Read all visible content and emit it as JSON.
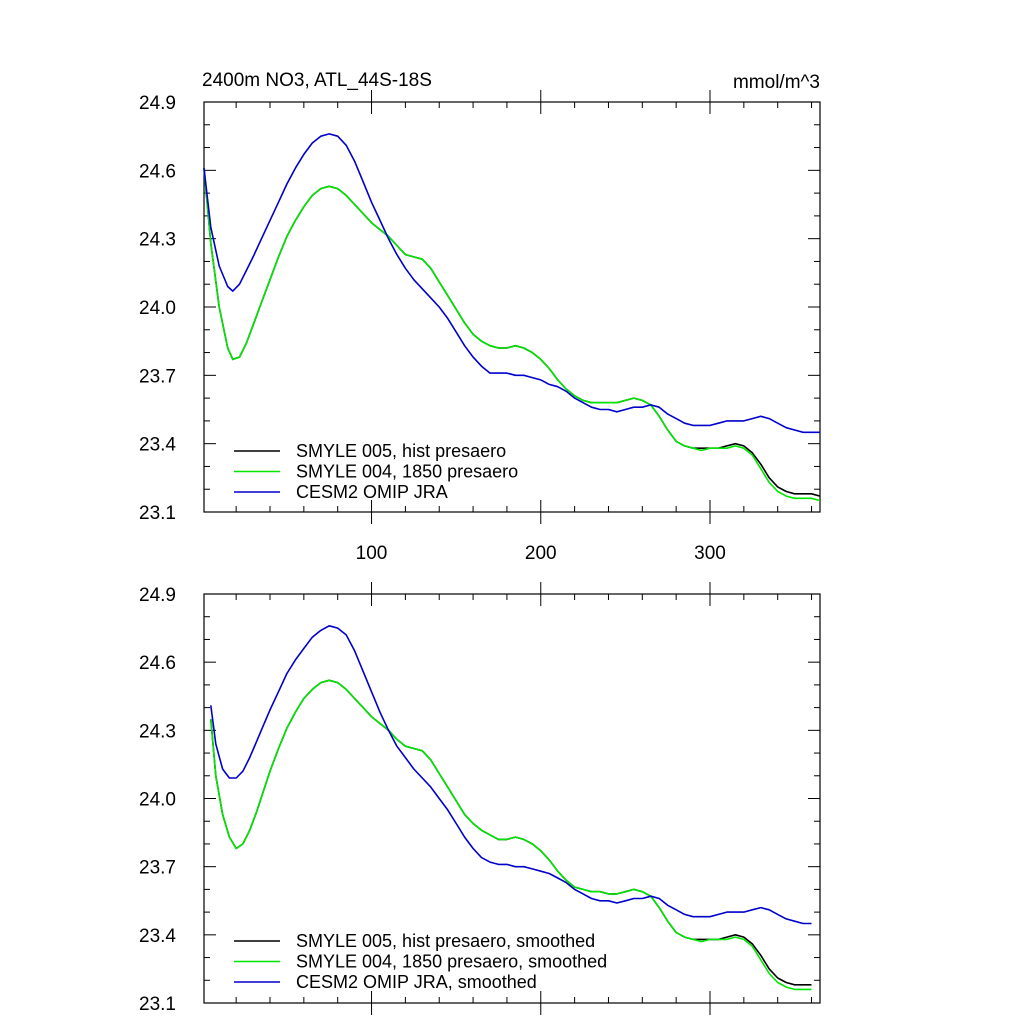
{
  "header": {
    "title": "2400m NO3, ATL_44S-18S",
    "units": "mmol/m^3"
  },
  "chart_data": [
    {
      "type": "line",
      "panel": "top",
      "xlim": [
        1,
        365
      ],
      "ylim": [
        23.1,
        24.9
      ],
      "xticks": [
        100,
        200,
        300
      ],
      "xtick_labels": [
        "100",
        "200",
        "300"
      ],
      "yticks": [
        23.1,
        23.4,
        23.7,
        24.0,
        24.3,
        24.6,
        24.9
      ],
      "ytick_labels": [
        "23.1",
        "23.4",
        "23.7",
        "24.0",
        "24.3",
        "24.6",
        "24.9"
      ],
      "legend_position": "bottom-left",
      "series": [
        {
          "name": "SMYLE 005, hist presaero",
          "color": "#000000",
          "x": [
            1,
            5,
            10,
            15,
            18,
            22,
            26,
            30,
            35,
            40,
            45,
            50,
            55,
            60,
            65,
            70,
            75,
            80,
            85,
            90,
            95,
            100,
            105,
            110,
            115,
            120,
            125,
            130,
            135,
            140,
            145,
            150,
            155,
            160,
            165,
            170,
            175,
            180,
            185,
            190,
            195,
            200,
            205,
            210,
            215,
            220,
            225,
            230,
            235,
            240,
            245,
            250,
            255,
            260,
            265,
            270,
            275,
            280,
            285,
            290,
            295,
            300,
            305,
            310,
            315,
            320,
            325,
            330,
            335,
            340,
            345,
            350,
            355,
            360,
            365
          ],
          "y": [
            24.61,
            24.28,
            24.0,
            23.82,
            23.77,
            23.78,
            23.84,
            23.92,
            24.02,
            24.12,
            24.22,
            24.31,
            24.38,
            24.44,
            24.49,
            24.52,
            24.53,
            24.52,
            24.49,
            24.45,
            24.41,
            24.37,
            24.34,
            24.31,
            24.27,
            24.23,
            24.22,
            24.21,
            24.17,
            24.11,
            24.05,
            23.99,
            23.93,
            23.88,
            23.85,
            23.83,
            23.82,
            23.82,
            23.83,
            23.82,
            23.8,
            23.77,
            23.73,
            23.68,
            23.64,
            23.61,
            23.59,
            23.58,
            23.58,
            23.58,
            23.58,
            23.59,
            23.6,
            23.59,
            23.57,
            23.52,
            23.46,
            23.41,
            23.39,
            23.38,
            23.38,
            23.38,
            23.38,
            23.39,
            23.4,
            23.39,
            23.36,
            23.31,
            23.25,
            23.21,
            23.19,
            23.18,
            23.18,
            23.18,
            23.17
          ]
        },
        {
          "name": "SMYLE 004, 1850 presaero",
          "color": "#00e600",
          "x": [
            1,
            5,
            10,
            15,
            18,
            22,
            26,
            30,
            35,
            40,
            45,
            50,
            55,
            60,
            65,
            70,
            75,
            80,
            85,
            90,
            95,
            100,
            105,
            110,
            115,
            120,
            125,
            130,
            135,
            140,
            145,
            150,
            155,
            160,
            165,
            170,
            175,
            180,
            185,
            190,
            195,
            200,
            205,
            210,
            215,
            220,
            225,
            230,
            235,
            240,
            245,
            250,
            255,
            260,
            265,
            270,
            275,
            280,
            285,
            290,
            295,
            300,
            305,
            310,
            315,
            320,
            325,
            330,
            335,
            340,
            345,
            350,
            355,
            360,
            365
          ],
          "y": [
            24.61,
            24.28,
            24.0,
            23.82,
            23.77,
            23.78,
            23.84,
            23.92,
            24.02,
            24.12,
            24.22,
            24.31,
            24.38,
            24.44,
            24.49,
            24.52,
            24.53,
            24.52,
            24.49,
            24.45,
            24.41,
            24.37,
            24.34,
            24.31,
            24.27,
            24.23,
            24.22,
            24.21,
            24.17,
            24.11,
            24.05,
            23.99,
            23.93,
            23.88,
            23.85,
            23.83,
            23.82,
            23.82,
            23.83,
            23.82,
            23.8,
            23.77,
            23.73,
            23.68,
            23.64,
            23.61,
            23.59,
            23.58,
            23.58,
            23.58,
            23.58,
            23.59,
            23.6,
            23.59,
            23.57,
            23.52,
            23.46,
            23.41,
            23.39,
            23.38,
            23.37,
            23.38,
            23.38,
            23.38,
            23.39,
            23.38,
            23.35,
            23.29,
            23.23,
            23.19,
            23.17,
            23.16,
            23.16,
            23.16,
            23.15
          ]
        },
        {
          "name": "CESM2 OMIP JRA",
          "color": "#0000cc",
          "x": [
            1,
            5,
            10,
            15,
            18,
            22,
            26,
            30,
            35,
            40,
            45,
            50,
            55,
            60,
            65,
            70,
            75,
            80,
            85,
            90,
            95,
            100,
            105,
            110,
            115,
            120,
            125,
            130,
            135,
            140,
            145,
            150,
            155,
            160,
            165,
            170,
            175,
            180,
            185,
            190,
            195,
            200,
            205,
            210,
            215,
            220,
            225,
            230,
            235,
            240,
            245,
            250,
            255,
            260,
            265,
            270,
            275,
            280,
            285,
            290,
            295,
            300,
            305,
            310,
            315,
            320,
            325,
            330,
            335,
            340,
            345,
            350,
            355,
            360,
            365
          ],
          "y": [
            24.61,
            24.35,
            24.18,
            24.09,
            24.07,
            24.1,
            24.16,
            24.22,
            24.3,
            24.38,
            24.46,
            24.54,
            24.61,
            24.67,
            24.72,
            24.75,
            24.76,
            24.75,
            24.71,
            24.64,
            24.55,
            24.46,
            24.38,
            24.3,
            24.23,
            24.17,
            24.12,
            24.08,
            24.04,
            24.0,
            23.95,
            23.89,
            23.83,
            23.78,
            23.74,
            23.71,
            23.71,
            23.71,
            23.7,
            23.7,
            23.69,
            23.68,
            23.66,
            23.65,
            23.63,
            23.6,
            23.58,
            23.56,
            23.55,
            23.55,
            23.54,
            23.55,
            23.56,
            23.56,
            23.57,
            23.56,
            23.53,
            23.51,
            23.49,
            23.48,
            23.48,
            23.48,
            23.49,
            23.5,
            23.5,
            23.5,
            23.51,
            23.52,
            23.51,
            23.49,
            23.47,
            23.46,
            23.45,
            23.45,
            23.45
          ]
        }
      ]
    },
    {
      "type": "line",
      "panel": "bottom",
      "xlim": [
        1,
        365
      ],
      "ylim": [
        23.1,
        24.9
      ],
      "xticks": [
        100,
        200,
        300
      ],
      "xtick_labels": [
        "",
        "",
        ""
      ],
      "yticks": [
        23.1,
        23.4,
        23.7,
        24.0,
        24.3,
        24.6,
        24.9
      ],
      "ytick_labels": [
        "23.1",
        "23.4",
        "23.7",
        "24.0",
        "24.3",
        "24.6",
        "24.9"
      ],
      "legend_position": "bottom-left",
      "series": [
        {
          "name": "SMYLE 005, hist presaero, smoothed",
          "color": "#000000",
          "x": [
            5,
            8,
            12,
            16,
            20,
            24,
            28,
            32,
            36,
            40,
            45,
            50,
            55,
            60,
            65,
            70,
            75,
            80,
            85,
            90,
            95,
            100,
            105,
            110,
            115,
            120,
            125,
            130,
            135,
            140,
            145,
            150,
            155,
            160,
            165,
            170,
            175,
            180,
            185,
            190,
            195,
            200,
            205,
            210,
            215,
            220,
            225,
            230,
            235,
            240,
            245,
            250,
            255,
            260,
            265,
            270,
            275,
            280,
            285,
            290,
            295,
            300,
            305,
            310,
            315,
            320,
            325,
            330,
            335,
            340,
            345,
            350,
            355,
            360
          ],
          "y": [
            24.35,
            24.1,
            23.93,
            23.83,
            23.78,
            23.8,
            23.86,
            23.94,
            24.03,
            24.12,
            24.22,
            24.31,
            24.38,
            24.44,
            24.48,
            24.51,
            24.52,
            24.51,
            24.48,
            24.44,
            24.4,
            24.36,
            24.33,
            24.3,
            24.26,
            24.23,
            24.22,
            24.21,
            24.17,
            24.11,
            24.05,
            23.99,
            23.93,
            23.89,
            23.86,
            23.84,
            23.82,
            23.82,
            23.83,
            23.82,
            23.8,
            23.77,
            23.73,
            23.68,
            23.64,
            23.61,
            23.6,
            23.59,
            23.59,
            23.58,
            23.58,
            23.59,
            23.6,
            23.59,
            23.57,
            23.52,
            23.46,
            23.41,
            23.39,
            23.38,
            23.38,
            23.38,
            23.38,
            23.39,
            23.4,
            23.39,
            23.36,
            23.31,
            23.25,
            23.21,
            23.19,
            23.18,
            23.18,
            23.18
          ]
        },
        {
          "name": "SMYLE 004, 1850 presaero, smoothed",
          "color": "#00e600",
          "x": [
            5,
            8,
            12,
            16,
            20,
            24,
            28,
            32,
            36,
            40,
            45,
            50,
            55,
            60,
            65,
            70,
            75,
            80,
            85,
            90,
            95,
            100,
            105,
            110,
            115,
            120,
            125,
            130,
            135,
            140,
            145,
            150,
            155,
            160,
            165,
            170,
            175,
            180,
            185,
            190,
            195,
            200,
            205,
            210,
            215,
            220,
            225,
            230,
            235,
            240,
            245,
            250,
            255,
            260,
            265,
            270,
            275,
            280,
            285,
            290,
            295,
            300,
            305,
            310,
            315,
            320,
            325,
            330,
            335,
            340,
            345,
            350,
            355,
            360
          ],
          "y": [
            24.35,
            24.1,
            23.93,
            23.83,
            23.78,
            23.8,
            23.86,
            23.94,
            24.03,
            24.12,
            24.22,
            24.31,
            24.38,
            24.44,
            24.48,
            24.51,
            24.52,
            24.51,
            24.48,
            24.44,
            24.4,
            24.36,
            24.33,
            24.3,
            24.26,
            24.23,
            24.22,
            24.21,
            24.17,
            24.11,
            24.05,
            23.99,
            23.93,
            23.89,
            23.86,
            23.84,
            23.82,
            23.82,
            23.83,
            23.82,
            23.8,
            23.77,
            23.73,
            23.68,
            23.64,
            23.61,
            23.6,
            23.59,
            23.59,
            23.58,
            23.58,
            23.59,
            23.6,
            23.59,
            23.57,
            23.52,
            23.46,
            23.41,
            23.39,
            23.38,
            23.37,
            23.38,
            23.38,
            23.38,
            23.39,
            23.38,
            23.35,
            23.29,
            23.23,
            23.19,
            23.17,
            23.16,
            23.16,
            23.16
          ]
        },
        {
          "name": "CESM2 OMIP JRA, smoothed",
          "color": "#0000cc",
          "x": [
            5,
            8,
            12,
            16,
            20,
            24,
            28,
            32,
            36,
            40,
            45,
            50,
            55,
            60,
            65,
            70,
            75,
            80,
            85,
            90,
            95,
            100,
            105,
            110,
            115,
            120,
            125,
            130,
            135,
            140,
            145,
            150,
            155,
            160,
            165,
            170,
            175,
            180,
            185,
            190,
            195,
            200,
            205,
            210,
            215,
            220,
            225,
            230,
            235,
            240,
            245,
            250,
            255,
            260,
            265,
            270,
            275,
            280,
            285,
            290,
            295,
            300,
            305,
            310,
            315,
            320,
            325,
            330,
            335,
            340,
            345,
            350,
            355,
            360
          ],
          "y": [
            24.41,
            24.24,
            24.13,
            24.09,
            24.09,
            24.12,
            24.18,
            24.25,
            24.32,
            24.39,
            24.47,
            24.55,
            24.61,
            24.66,
            24.71,
            24.74,
            24.76,
            24.75,
            24.72,
            24.65,
            24.56,
            24.47,
            24.38,
            24.3,
            24.23,
            24.18,
            24.13,
            24.09,
            24.05,
            24.0,
            23.95,
            23.89,
            23.83,
            23.78,
            23.74,
            23.72,
            23.71,
            23.71,
            23.7,
            23.7,
            23.69,
            23.68,
            23.67,
            23.65,
            23.63,
            23.6,
            23.58,
            23.56,
            23.55,
            23.55,
            23.54,
            23.55,
            23.56,
            23.56,
            23.57,
            23.56,
            23.53,
            23.51,
            23.49,
            23.48,
            23.48,
            23.48,
            23.49,
            23.5,
            23.5,
            23.5,
            23.51,
            23.52,
            23.51,
            23.49,
            23.47,
            23.46,
            23.45,
            23.45
          ]
        }
      ]
    }
  ]
}
